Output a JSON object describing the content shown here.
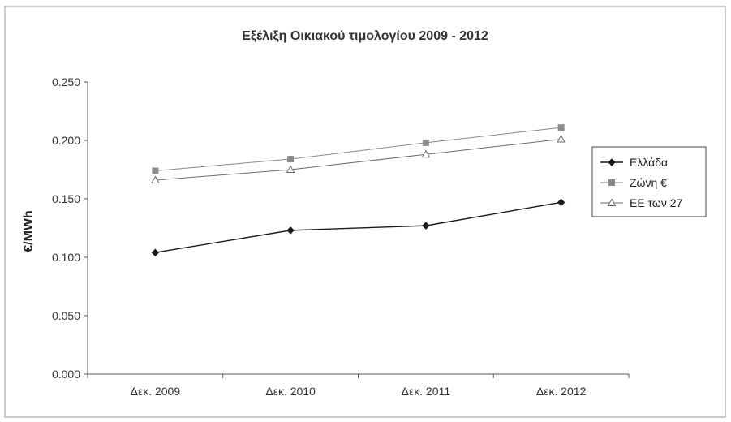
{
  "chart_data": {
    "type": "line",
    "title": "Εξέλιξη Οικιακού τιμολογίου 2009 - 2012",
    "xlabel": "",
    "ylabel": "€/MWh",
    "categories": [
      "Δεκ. 2009",
      "Δεκ. 2010",
      "Δεκ. 2011",
      "Δεκ. 2012"
    ],
    "ylim": [
      0,
      0.25
    ],
    "yticks": [
      "0.000",
      "0.050",
      "0.100",
      "0.150",
      "0.200",
      "0.250"
    ],
    "grid": false,
    "legend_position": "right",
    "series": [
      {
        "name": "Ελλάδα",
        "values": [
          0.104,
          0.123,
          0.127,
          0.147
        ],
        "marker": "diamond",
        "color": "#1a1a1a"
      },
      {
        "name": "Ζώνη €",
        "values": [
          0.174,
          0.184,
          0.198,
          0.211
        ],
        "marker": "square",
        "color": "#8a8a8a"
      },
      {
        "name": "ΕΕ των 27",
        "values": [
          0.166,
          0.175,
          0.188,
          0.201
        ],
        "marker": "triangle",
        "color": "#6a6a6a"
      }
    ]
  }
}
